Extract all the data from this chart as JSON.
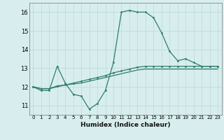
{
  "x": [
    0,
    1,
    2,
    3,
    4,
    5,
    6,
    7,
    8,
    9,
    10,
    11,
    12,
    13,
    14,
    15,
    16,
    17,
    18,
    19,
    20,
    21,
    22,
    23
  ],
  "line1": [
    12.0,
    11.8,
    11.8,
    13.1,
    12.2,
    11.6,
    11.5,
    10.8,
    11.1,
    11.8,
    13.3,
    16.0,
    16.1,
    16.0,
    16.0,
    15.7,
    14.9,
    13.9,
    13.4,
    13.5,
    13.3,
    13.1,
    13.1,
    13.1
  ],
  "line2": [
    12.0,
    11.9,
    11.9,
    12.05,
    12.1,
    12.2,
    12.3,
    12.4,
    12.5,
    12.6,
    12.75,
    12.85,
    12.95,
    13.05,
    13.1,
    13.1,
    13.1,
    13.1,
    13.1,
    13.1,
    13.1,
    13.1,
    13.1,
    13.1
  ],
  "line3": [
    12.0,
    11.9,
    11.9,
    12.0,
    12.1,
    12.15,
    12.2,
    12.3,
    12.4,
    12.5,
    12.6,
    12.7,
    12.8,
    12.9,
    12.95,
    12.95,
    12.95,
    12.95,
    12.95,
    12.95,
    12.95,
    12.95,
    12.95,
    12.95
  ],
  "line_color": "#2e7d6e",
  "bg_color": "#d8eeee",
  "grid_color": "#c0dada",
  "xlabel": "Humidex (Indice chaleur)",
  "ylim": [
    10.5,
    16.5
  ],
  "xlim": [
    -0.5,
    23.5
  ],
  "yticks": [
    11,
    12,
    13,
    14,
    15,
    16
  ],
  "xtick_labels": [
    "0",
    "1",
    "2",
    "3",
    "4",
    "5",
    "6",
    "7",
    "8",
    "9",
    "10",
    "11",
    "12",
    "13",
    "14",
    "15",
    "16",
    "17",
    "18",
    "19",
    "20",
    "21",
    "22",
    "23"
  ]
}
